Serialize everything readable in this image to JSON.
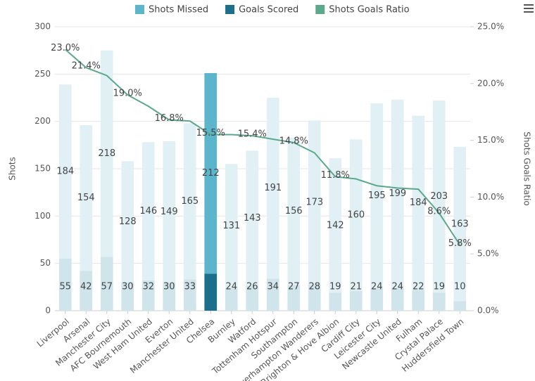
{
  "chart_data": {
    "type": "combo",
    "categories": [
      "Liverpool",
      "Arsenal",
      "Manchester City",
      "AFC Bournemouth",
      "West Ham United",
      "Everton",
      "Manchester United",
      "Chelsea",
      "Burnley",
      "Watford",
      "Tottenham Hotspur",
      "Southampton",
      "Wolverhampton Wanderers",
      "Brighton & Hove Albion",
      "Cardiff City",
      "Leicester City",
      "Newcastle United",
      "Fulham",
      "Crystal Palace",
      "Huddersfield Town"
    ],
    "highlighted_category": "Chelsea",
    "ylabel": "Shots",
    "y2label": "Shots Goals Ratio",
    "ylim": [
      0,
      300
    ],
    "yticks": [
      0,
      50,
      100,
      150,
      200,
      250,
      300
    ],
    "y2lim": [
      0,
      25
    ],
    "y2ticks": [
      {
        "value": 0,
        "label": "0.0%"
      },
      {
        "value": 5,
        "label": "5.0%"
      },
      {
        "value": 10,
        "label": "10.0%"
      },
      {
        "value": 15,
        "label": "15.0%"
      },
      {
        "value": 20,
        "label": "20.0%"
      },
      {
        "value": 25,
        "label": "25.0%"
      }
    ],
    "grid": true,
    "legend": "top",
    "series": [
      {
        "name": "Goals Scored",
        "type": "bar",
        "color": "#1b6f8a",
        "faded_color": "#cfe4eb",
        "values": [
          55,
          42,
          57,
          30,
          32,
          30,
          33,
          39,
          24,
          26,
          34,
          27,
          28,
          19,
          21,
          24,
          24,
          22,
          19,
          10
        ],
        "value_labels": [
          "55",
          "42",
          "57",
          "30",
          "32",
          "30",
          "33",
          null,
          "24",
          "26",
          "34",
          "27",
          "28",
          "19",
          "21",
          "24",
          "24",
          "22",
          "19",
          "10"
        ]
      },
      {
        "name": "Shots Missed",
        "type": "bar",
        "color": "#5bb6cc",
        "faded_color": "#e1f0f5",
        "values": [
          184,
          154,
          218,
          128,
          146,
          149,
          165,
          212,
          131,
          143,
          191,
          156,
          173,
          142,
          160,
          195,
          199,
          184,
          203,
          163
        ]
      },
      {
        "name": "Shots Goals Ratio",
        "type": "line",
        "axis": "y2",
        "color": "#5ca88a",
        "values": [
          23.0,
          21.4,
          20.7,
          19.0,
          18.0,
          16.8,
          16.7,
          15.5,
          15.5,
          15.4,
          15.1,
          14.8,
          13.9,
          11.8,
          11.6,
          11.0,
          10.8,
          10.7,
          8.6,
          5.8
        ],
        "value_labels": [
          "23.0%",
          "21.4%",
          null,
          "19.0%",
          null,
          "16.8%",
          null,
          "15.5%",
          null,
          "15.4%",
          null,
          "14.8%",
          null,
          "11.8%",
          null,
          null,
          null,
          null,
          "8.6%",
          "5.8%"
        ]
      }
    ]
  }
}
